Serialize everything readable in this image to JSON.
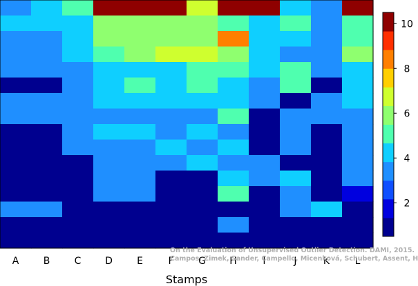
{
  "chart_data": {
    "type": "heatmap",
    "xlabel": "Stamps",
    "ylabel": "",
    "title": "",
    "columns": [
      "A",
      "B",
      "C",
      "D",
      "E",
      "F",
      "G",
      "H",
      "I",
      "J",
      "K",
      "L"
    ],
    "rows": 16,
    "values": [
      [
        3,
        4,
        5,
        10,
        10,
        10,
        7,
        10,
        10,
        4,
        3,
        10
      ],
      [
        4,
        4,
        4,
        6,
        6,
        6,
        6,
        5,
        4,
        5,
        3,
        5
      ],
      [
        3,
        3,
        4,
        6,
        6,
        6,
        6,
        8,
        4,
        4,
        3,
        5
      ],
      [
        3,
        3,
        4,
        5,
        6,
        7,
        7,
        6,
        4,
        3,
        3,
        6
      ],
      [
        3,
        3,
        3,
        4,
        4,
        4,
        5,
        5,
        4,
        5,
        3,
        4
      ],
      [
        1,
        1,
        3,
        4,
        5,
        4,
        5,
        4,
        3,
        5,
        1,
        4
      ],
      [
        3,
        3,
        3,
        4,
        4,
        4,
        4,
        4,
        3,
        1,
        3,
        4
      ],
      [
        3,
        3,
        3,
        3,
        3,
        3,
        3,
        5,
        1,
        3,
        3,
        3
      ],
      [
        1,
        1,
        3,
        4,
        4,
        3,
        4,
        3,
        1,
        3,
        1,
        3
      ],
      [
        1,
        1,
        3,
        3,
        3,
        4,
        3,
        4,
        1,
        3,
        1,
        3
      ],
      [
        1,
        1,
        1,
        3,
        3,
        3,
        4,
        3,
        3,
        1,
        1,
        3
      ],
      [
        1,
        1,
        1,
        3,
        3,
        1,
        1,
        4,
        3,
        4,
        1,
        3
      ],
      [
        1,
        1,
        1,
        3,
        3,
        1,
        1,
        5,
        1,
        3,
        1,
        2
      ],
      [
        3,
        3,
        1,
        0,
        0,
        0,
        0,
        0,
        0,
        3,
        4,
        0
      ],
      [
        0,
        0,
        0,
        0,
        0,
        0,
        0,
        3,
        0,
        0,
        0,
        0
      ],
      [
        0,
        0,
        0,
        0,
        0,
        0,
        0,
        0,
        0,
        0,
        0,
        0
      ]
    ],
    "color_range": [
      0.5,
      10.5
    ],
    "colorbar_ticks": [
      2,
      4,
      6,
      8,
      10
    ],
    "colorscale": [
      "#00008f",
      "#0000df",
      "#0f4fff",
      "#1f8fff",
      "#0fcfff",
      "#4fffaf",
      "#8fff6f",
      "#cfff2f",
      "#ffcf00",
      "#ff7f00",
      "#ff2f00",
      "#8f0000"
    ]
  },
  "credit": {
    "line1": "On the Evaluation of Unsupervised Outlier Detection. DAMI, 2015.",
    "line2": "Campos, Zimek, Sander, Campello, Micenková, Schubert, Assent, Houle"
  }
}
